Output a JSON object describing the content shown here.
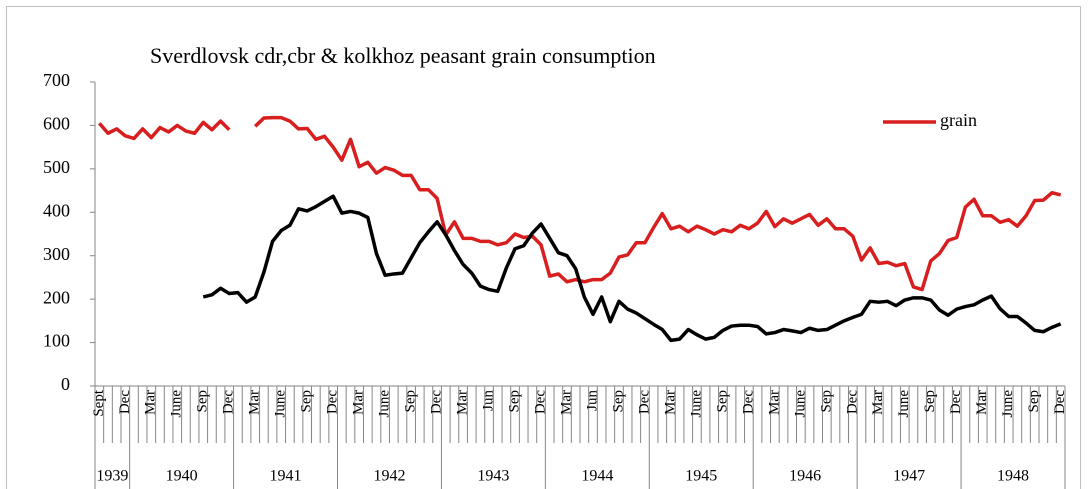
{
  "chart_data": {
    "type": "line",
    "title": "Sverdlovsk cdr,cbr & kolkhoz peasant grain consumption",
    "categories": [
      "Sept",
      null,
      null,
      "Dec",
      null,
      null,
      "Mar",
      null,
      null,
      "June",
      null,
      null,
      "Sep",
      null,
      null,
      "Dec",
      null,
      null,
      "Mar",
      null,
      null,
      "June",
      null,
      null,
      "Sep",
      null,
      null,
      "Dec",
      null,
      null,
      "Mar",
      null,
      null,
      "June",
      null,
      null,
      "Sep",
      null,
      null,
      "Dec",
      null,
      null,
      "Mar",
      null,
      null,
      "Jun",
      null,
      null,
      "Sep",
      null,
      null,
      "Dec",
      null,
      null,
      "Mar",
      null,
      null,
      "Jun",
      null,
      null,
      "Sep",
      null,
      null,
      "Dec",
      null,
      null,
      "Mar",
      null,
      null,
      "June",
      null,
      null,
      "Sep",
      null,
      null,
      "Dec",
      null,
      null,
      "Mar",
      null,
      null,
      "June",
      null,
      null,
      "Sep",
      null,
      null,
      "Dec",
      null,
      null,
      "Mar",
      null,
      null,
      "June",
      null,
      null,
      "Sep",
      null,
      null,
      "Dec",
      null,
      null,
      "Mar",
      null,
      null,
      "June",
      null,
      null,
      "Sep",
      null,
      null,
      "Dec"
    ],
    "x_groups": [
      "1939",
      "1940",
      "1941",
      "1942",
      "1943",
      "1944",
      "1945",
      "1946",
      "1947",
      "1948"
    ],
    "series": [
      {
        "name": "grain",
        "color": "#d81e1e",
        "values": [
          605,
          582,
          592,
          576,
          570,
          592,
          572,
          595,
          585,
          600,
          587,
          582,
          607,
          590,
          610,
          590,
          null,
          null,
          598,
          617,
          618,
          618,
          610,
          592,
          593,
          568,
          575,
          550,
          520,
          568,
          505,
          515,
          490,
          503,
          497,
          485,
          485,
          452,
          452,
          432,
          348,
          378,
          340,
          340,
          333,
          333,
          325,
          330,
          350,
          342,
          345,
          325,
          253,
          258,
          240,
          245,
          240,
          245,
          245,
          260,
          297,
          302,
          330,
          330,
          365,
          397,
          362,
          368,
          355,
          368,
          360,
          350,
          360,
          355,
          370,
          362,
          375,
          402,
          367,
          385,
          375,
          385,
          395,
          370,
          385,
          362,
          362,
          345,
          290,
          318,
          282,
          285,
          277,
          282,
          228,
          222,
          288,
          305,
          335,
          342,
          412,
          430,
          392,
          392,
          377,
          383,
          368,
          392,
          427,
          428,
          445,
          440
        ]
      },
      {
        "color": "#000000",
        "values": [
          null,
          null,
          null,
          null,
          null,
          null,
          null,
          null,
          null,
          null,
          null,
          null,
          205,
          210,
          225,
          213,
          215,
          193,
          205,
          262,
          333,
          358,
          370,
          408,
          403,
          413,
          425,
          437,
          398,
          402,
          398,
          388,
          305,
          255,
          258,
          260,
          295,
          330,
          355,
          378,
          348,
          312,
          280,
          260,
          230,
          222,
          218,
          272,
          316,
          323,
          352,
          373,
          340,
          307,
          300,
          270,
          205,
          165,
          205,
          148,
          195,
          177,
          168,
          155,
          142,
          130,
          105,
          108,
          130,
          118,
          108,
          112,
          128,
          138,
          140,
          140,
          137,
          120,
          123,
          130,
          127,
          123,
          133,
          128,
          130,
          140,
          150,
          158,
          165,
          195,
          193,
          195,
          185,
          198,
          203,
          203,
          198,
          175,
          163,
          177,
          183,
          187,
          198,
          207,
          178,
          160,
          160,
          145,
          128,
          125,
          135,
          143
        ]
      }
    ],
    "ylim": [
      0,
      700
    ],
    "yticks": [
      0,
      100,
      200,
      300,
      400,
      500,
      600,
      700
    ],
    "grid": false,
    "legend": "upper right"
  }
}
